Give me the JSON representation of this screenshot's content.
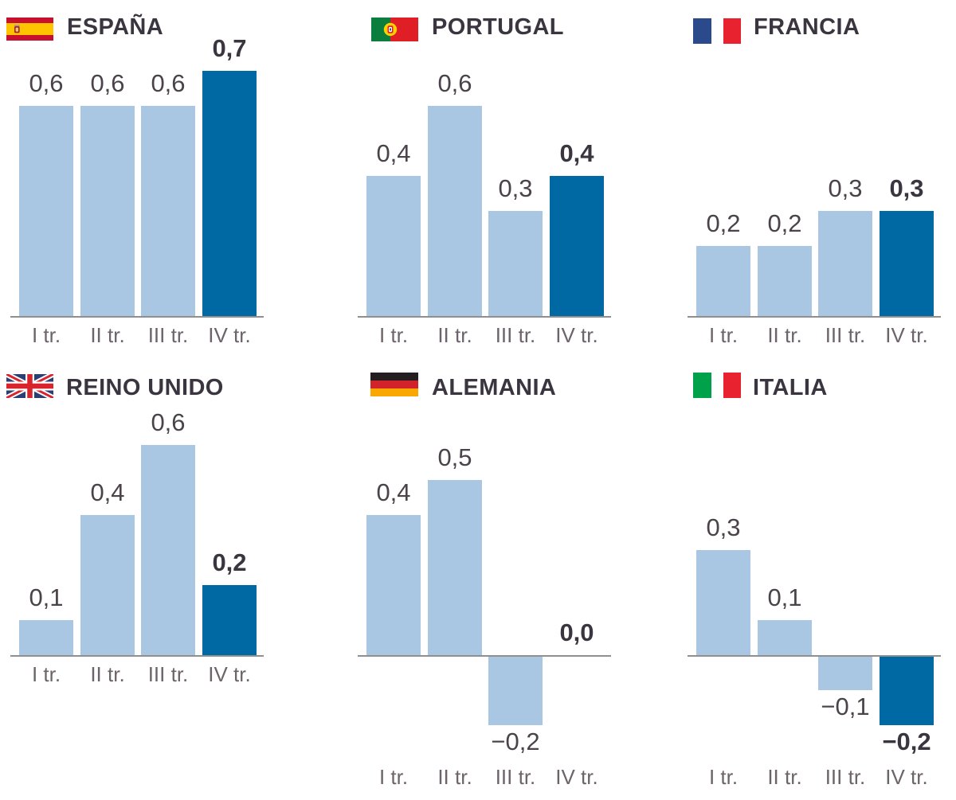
{
  "colors": {
    "bar_light": "#a9c7e2",
    "bar_dark": "#0069a3",
    "axis": "#8f8f8f",
    "title": "#3b3540",
    "value": "#4b434a",
    "tick": "#6d646b"
  },
  "chart_data": [
    {
      "type": "bar",
      "title": "ESPAÑA",
      "flag": "spain-flag-icon",
      "categories": [
        "I tr.",
        "II tr.",
        "III tr.",
        "IV tr."
      ],
      "values": [
        0.6,
        0.6,
        0.6,
        0.7
      ],
      "value_labels": [
        "0,6",
        "0,6",
        "0,6",
        "0,7"
      ],
      "highlight_index": 3
    },
    {
      "type": "bar",
      "title": "PORTUGAL",
      "flag": "portugal-flag-icon",
      "categories": [
        "I tr.",
        "II tr.",
        "III tr.",
        "IV tr."
      ],
      "values": [
        0.4,
        0.6,
        0.3,
        0.4
      ],
      "value_labels": [
        "0,4",
        "0,6",
        "0,3",
        "0,4"
      ],
      "highlight_index": 3
    },
    {
      "type": "bar",
      "title": "FRANCIA",
      "flag": "france-flag-icon",
      "categories": [
        "I tr.",
        "II tr.",
        "III tr.",
        "IV tr."
      ],
      "values": [
        0.2,
        0.2,
        0.3,
        0.3
      ],
      "value_labels": [
        "0,2",
        "0,2",
        "0,3",
        "0,3"
      ],
      "highlight_index": 3
    },
    {
      "type": "bar",
      "title": "REINO UNIDO",
      "flag": "uk-flag-icon",
      "categories": [
        "I tr.",
        "II tr.",
        "III tr.",
        "IV tr."
      ],
      "values": [
        0.1,
        0.4,
        0.6,
        0.2
      ],
      "value_labels": [
        "0,1",
        "0,4",
        "0,6",
        "0,2"
      ],
      "highlight_index": 3
    },
    {
      "type": "bar",
      "title": "ALEMANIA",
      "flag": "germany-flag-icon",
      "categories": [
        "I tr.",
        "II tr.",
        "III tr.",
        "IV tr."
      ],
      "values": [
        0.4,
        0.5,
        -0.2,
        0.0
      ],
      "value_labels": [
        "0,4",
        "0,5",
        "−0,2",
        "0,0"
      ],
      "highlight_index": 3
    },
    {
      "type": "bar",
      "title": "ITALIA",
      "flag": "italy-flag-icon",
      "categories": [
        "I tr.",
        "II tr.",
        "III tr.",
        "IV tr."
      ],
      "values": [
        0.3,
        0.1,
        -0.1,
        -0.2
      ],
      "value_labels": [
        "0,3",
        "0,1",
        "−0,1",
        "−0,2"
      ],
      "highlight_index": 3
    }
  ]
}
